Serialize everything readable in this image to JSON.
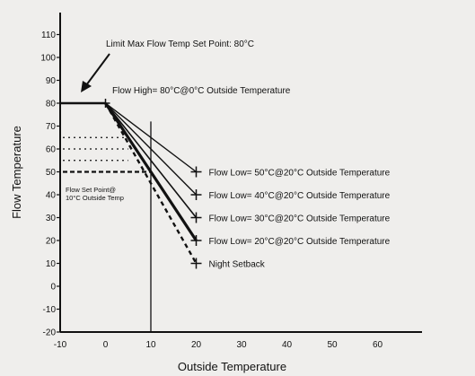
{
  "chart_data": {
    "type": "line",
    "title": "",
    "xlabel": "Outside Temperature",
    "ylabel": "Flow Temperature",
    "xlim": [
      -10,
      70
    ],
    "ylim": [
      -20,
      115
    ],
    "x_ticks": [
      -10,
      0,
      10,
      20,
      30,
      40,
      50,
      60
    ],
    "y_ticks": [
      110,
      100,
      90,
      80,
      70,
      60,
      50,
      40,
      30,
      20,
      10,
      0,
      -10,
      -20
    ],
    "grid": false,
    "limit": {
      "y": 80,
      "x_from": -10,
      "x_to": 0
    },
    "vertical_marker_x": 10,
    "setpoint_ref": {
      "y": 50,
      "x_from": -10,
      "x_to": 10
    },
    "setpoint_levels": [
      65,
      60,
      55
    ],
    "series": [
      {
        "name": "Flow Low= 50°C@20°C Outside Temperature",
        "x": [
          0,
          20
        ],
        "y": [
          80,
          50
        ]
      },
      {
        "name": "Flow Low= 40°C@20°C Outside Temperature",
        "x": [
          0,
          20
        ],
        "y": [
          80,
          40
        ]
      },
      {
        "name": "Flow Low= 30°C@20°C Outside Temperature",
        "x": [
          0,
          20
        ],
        "y": [
          80,
          30
        ]
      },
      {
        "name": "Flow Low= 20°C@20°C Outside Temperature",
        "x": [
          0,
          20
        ],
        "y": [
          80,
          20
        ]
      },
      {
        "name": "Night Setback",
        "x": [
          0,
          20
        ],
        "y": [
          80,
          10
        ]
      }
    ],
    "annotations": {
      "limit_label": "Limit Max Flow Temp Set Point: 80°C",
      "flow_high": "Flow High= 80°C@0°C Outside Temperature",
      "setpoint_label_1": "Flow Set Point@",
      "setpoint_label_2": "10°C Outside Temp"
    }
  }
}
